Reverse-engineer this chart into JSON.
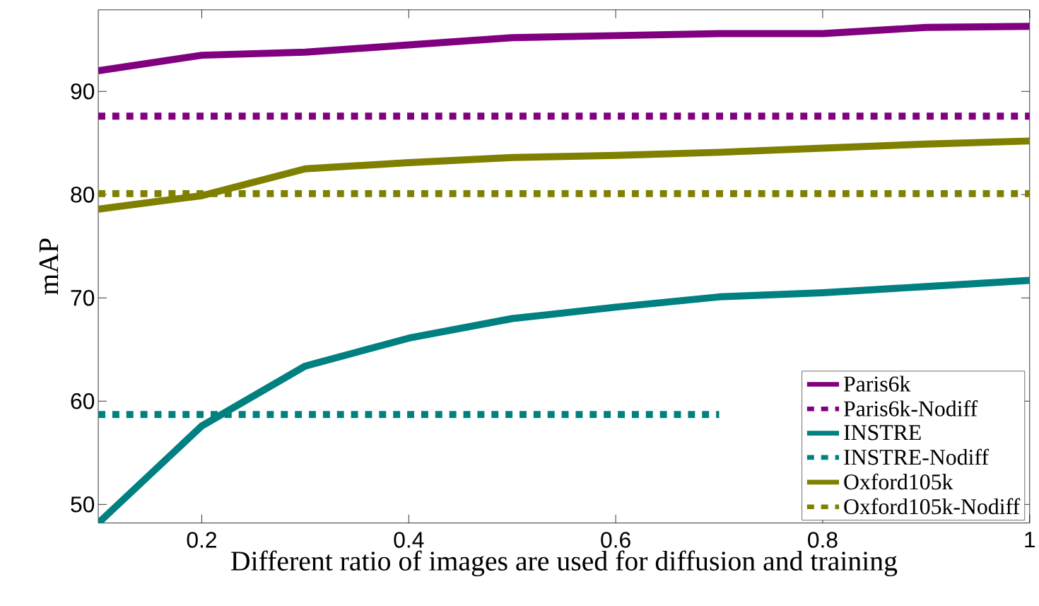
{
  "chart_data": {
    "type": "line",
    "xlabel": "Different ratio of images are used for diffusion and training",
    "ylabel": "mAP",
    "x": [
      0.1,
      0.2,
      0.3,
      0.4,
      0.5,
      0.6,
      0.7,
      0.8,
      0.9,
      1
    ],
    "xlim": [
      0.1,
      1
    ],
    "ylim": [
      48.2,
      97.9
    ],
    "xticks": [
      0.2,
      0.4,
      0.6,
      0.8,
      1
    ],
    "yticks": [
      50,
      60,
      70,
      80,
      90
    ],
    "legend": "bottom right",
    "series": [
      {
        "name": "Paris6k",
        "color": "#800080",
        "line_style": "solid",
        "values": [
          92.0,
          93.5,
          93.8,
          94.5,
          95.2,
          95.4,
          95.6,
          95.6,
          96.2,
          96.3
        ]
      },
      {
        "name": "Paris6k-Nodiff",
        "color": "#800080",
        "line_style": "dotted",
        "values": [
          87.6,
          87.6,
          87.6,
          87.6,
          87.6,
          87.6,
          87.6,
          87.6,
          87.6,
          87.6
        ]
      },
      {
        "name": "INSTRE",
        "color": "#008080",
        "line_style": "solid",
        "values": [
          48.2,
          57.6,
          63.4,
          66.1,
          68.0,
          69.1,
          70.1,
          70.5,
          71.1,
          71.7
        ]
      },
      {
        "name": "INSTRE-Nodiff",
        "color": "#008080",
        "line_style": "dotted",
        "values": [
          58.7,
          58.7,
          58.7,
          58.7,
          58.7,
          58.7,
          58.7,
          null,
          null,
          null
        ]
      },
      {
        "name": "Oxford105k",
        "color": "#808000",
        "line_style": "solid",
        "values": [
          78.6,
          79.9,
          82.5,
          83.1,
          83.6,
          83.8,
          84.1,
          84.5,
          84.9,
          85.2
        ]
      },
      {
        "name": "Oxford105k-Nodiff",
        "color": "#808000",
        "line_style": "dotted",
        "values": [
          80.1,
          80.1,
          80.1,
          80.1,
          80.1,
          80.1,
          80.1,
          80.1,
          80.1,
          80.1
        ]
      }
    ]
  }
}
